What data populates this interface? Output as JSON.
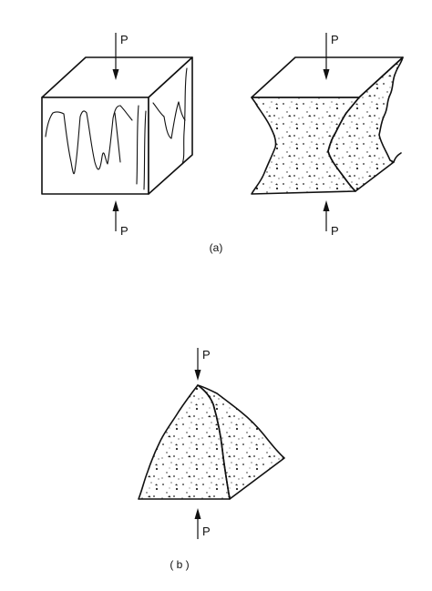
{
  "figure": {
    "load_label": "P",
    "caption_a": "(a)",
    "caption_b": "( b )"
  }
}
